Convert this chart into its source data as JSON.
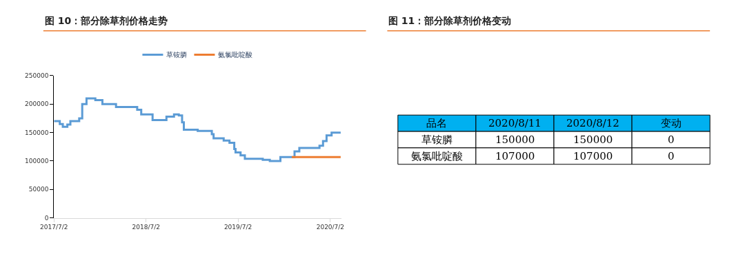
{
  "chart_data": [
    {
      "type": "step",
      "title": "图 10：部分除草剂价格走势",
      "xlim": [
        "2017-07-02",
        "2020-08-14"
      ],
      "xticks": [
        {
          "value": "2017-07-02",
          "label": "2017/7/2"
        },
        {
          "value": "2018-07-02",
          "label": "2018/7/2"
        },
        {
          "value": "2019-07-02",
          "label": "2019/7/2"
        },
        {
          "value": "2020-07-02",
          "label": "2020/7/2"
        }
      ],
      "ylim": [
        0,
        250000
      ],
      "yticks": [
        0,
        50000,
        100000,
        150000,
        200000,
        250000
      ],
      "legend": "top",
      "marker": "none",
      "line_style": "solid",
      "series": [
        {
          "name": "草铵膦",
          "color": "#5b9bd5",
          "x": [
            "2017-07-02",
            "2017-07-25",
            "2017-08-06",
            "2017-08-24",
            "2017-09-05",
            "2017-10-10",
            "2017-10-22",
            "2017-11-08",
            "2017-12-13",
            "2018-01-10",
            "2018-03-05",
            "2018-05-28",
            "2018-06-13",
            "2018-07-28",
            "2018-09-21",
            "2018-10-21",
            "2018-11-09",
            "2018-11-22",
            "2018-11-29",
            "2019-01-23",
            "2019-03-20",
            "2019-03-27",
            "2019-05-06",
            "2019-05-29",
            "2019-06-17",
            "2019-06-22",
            "2019-07-12",
            "2019-07-29",
            "2019-10-08",
            "2019-11-05",
            "2019-12-17",
            "2020-02-11",
            "2020-03-01",
            "2020-05-20",
            "2020-06-03",
            "2020-06-17",
            "2020-07-07",
            "2020-08-12"
          ],
          "values": [
            170000,
            165000,
            160000,
            164000,
            170000,
            175000,
            200000,
            210000,
            207000,
            200000,
            195000,
            190000,
            182000,
            172000,
            178000,
            182000,
            180000,
            168000,
            155000,
            153000,
            147000,
            140000,
            136000,
            132000,
            121000,
            115000,
            110000,
            104000,
            102000,
            100000,
            107000,
            117000,
            123000,
            127000,
            135000,
            145000,
            150000,
            150000
          ]
        },
        {
          "name": "氨氯吡啶酸",
          "color": "#ed7d31",
          "x": [
            "2020-01-31",
            "2020-08-12"
          ],
          "values": [
            107000,
            107000
          ]
        }
      ]
    },
    {
      "type": "other",
      "title": "图 11：部分除草剂价格变动",
      "ylabel": "品名",
      "categories": [
        "2020/8/11",
        "2020/8/12",
        "变动"
      ],
      "y_categories": [
        "草铵膦",
        "氨氯吡啶酸"
      ],
      "cell_labels": [
        [
          "150000",
          "150000",
          "0"
        ],
        [
          "107000",
          "107000",
          "0"
        ]
      ]
    }
  ]
}
